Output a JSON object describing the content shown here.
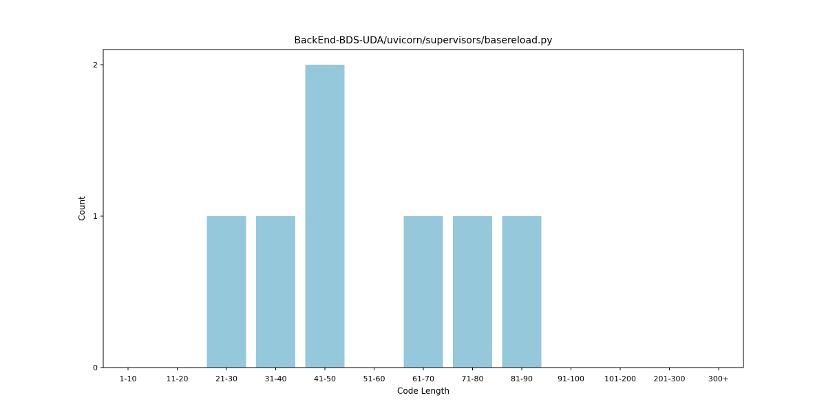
{
  "chart_data": {
    "type": "bar",
    "title": "BackEnd-BDS-UDA/uvicorn/supervisors/basereload.py",
    "xlabel": "Code Length",
    "ylabel": "Count",
    "categories": [
      "1-10",
      "11-20",
      "21-30",
      "31-40",
      "41-50",
      "51-60",
      "61-70",
      "71-80",
      "81-90",
      "91-100",
      "101-200",
      "201-300",
      "300+"
    ],
    "values": [
      0,
      0,
      1,
      1,
      2,
      0,
      1,
      1,
      1,
      0,
      0,
      0,
      0
    ],
    "yticks": [
      "0",
      "1",
      "2"
    ],
    "ylim": [
      0,
      2.1
    ],
    "bar_color": "#96c8dc",
    "grid": false,
    "legend": "none"
  }
}
